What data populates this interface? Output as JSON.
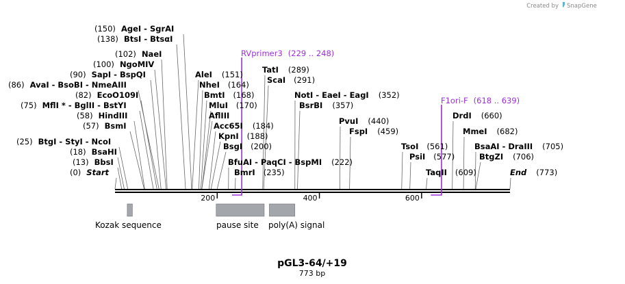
{
  "credit": {
    "text": "Created by",
    "brand": "SnapGene"
  },
  "map": {
    "name": "pGL3-64/+19",
    "length_label": "773 bp",
    "length": 773
  },
  "ticks": [
    {
      "pos": 200,
      "label": "200"
    },
    {
      "pos": 400,
      "label": "400"
    },
    {
      "pos": 600,
      "label": "600"
    }
  ],
  "sites": [
    {
      "id": "sgrai",
      "pos": 150,
      "pos_label": "(150)",
      "names": [
        "AgeI",
        "SgrAI"
      ]
    },
    {
      "id": "btsci",
      "pos": 138,
      "pos_label": "(138)",
      "names": [
        "BtsI",
        "BtsαI"
      ]
    },
    {
      "id": "naei",
      "pos": 102,
      "pos_label": "(102)",
      "names": [
        "NaeI"
      ]
    },
    {
      "id": "ngomiv",
      "pos": 100,
      "pos_label": "(100)",
      "names": [
        "NgoMIV"
      ]
    },
    {
      "id": "sapi",
      "pos": 90,
      "pos_label": "(90)",
      "names": [
        "SapI",
        "BspQI"
      ]
    },
    {
      "id": "avai",
      "pos": 86,
      "pos_label": "(86)",
      "names": [
        "AvaI",
        "BsoBI",
        "NmeAIII"
      ]
    },
    {
      "id": "ecoo109i",
      "pos": 82,
      "pos_label": "(82)",
      "names": [
        "EcoO109I"
      ]
    },
    {
      "id": "mfli",
      "pos": 75,
      "pos_label": "(75)",
      "names": [
        "MflI *",
        "BglII",
        "BstYI"
      ]
    },
    {
      "id": "hindiii",
      "pos": 58,
      "pos_label": "(58)",
      "names": [
        "HindIII"
      ]
    },
    {
      "id": "bsmi",
      "pos": 57,
      "pos_label": "(57)",
      "names": [
        "BsmI"
      ]
    },
    {
      "id": "btgi",
      "pos": 25,
      "pos_label": "(25)",
      "names": [
        "BtgI",
        "StyI",
        "NcoI"
      ]
    },
    {
      "id": "bsahi",
      "pos": 18,
      "pos_label": "(18)",
      "names": [
        "BsaHI"
      ]
    },
    {
      "id": "bbsi",
      "pos": 13,
      "pos_label": "(13)",
      "names": [
        "BbsI"
      ]
    },
    {
      "id": "start",
      "pos": 0,
      "pos_label": "(0)",
      "names": [
        "Start"
      ],
      "italic": true
    },
    {
      "id": "alei",
      "pos": 151,
      "pos_label": "(151)",
      "names": [
        "AleI"
      ]
    },
    {
      "id": "nhei",
      "pos": 164,
      "pos_label": "(164)",
      "names": [
        "NheI"
      ]
    },
    {
      "id": "bmti",
      "pos": 168,
      "pos_label": "(168)",
      "names": [
        "BmtI"
      ]
    },
    {
      "id": "mlui",
      "pos": 170,
      "pos_label": "(170)",
      "names": [
        "MluI"
      ]
    },
    {
      "id": "afliii",
      "pos": 170,
      "pos_label": "",
      "names": [
        "AflIII"
      ]
    },
    {
      "id": "acc65i",
      "pos": 184,
      "pos_label": "(184)",
      "names": [
        "Acc65I"
      ]
    },
    {
      "id": "kpni",
      "pos": 188,
      "pos_label": "(188)",
      "names": [
        "KpnI"
      ]
    },
    {
      "id": "bsgi",
      "pos": 200,
      "pos_label": "(200)",
      "names": [
        "BsgI"
      ]
    },
    {
      "id": "tati",
      "pos": 289,
      "pos_label": "(289)",
      "names": [
        "TatI"
      ]
    },
    {
      "id": "scai",
      "pos": 291,
      "pos_label": "(291)",
      "names": [
        "ScaI"
      ]
    },
    {
      "id": "bfuai",
      "pos": 222,
      "pos_label": "(222)",
      "names": [
        "BfuAI",
        "PaqCI",
        "BspMI"
      ]
    },
    {
      "id": "bmri",
      "pos": 235,
      "pos_label": "(235)",
      "names": [
        "BmrI"
      ]
    },
    {
      "id": "noti",
      "pos": 352,
      "pos_label": "(352)",
      "names": [
        "NotI",
        "EaeI",
        "EagI"
      ]
    },
    {
      "id": "bsrbi",
      "pos": 357,
      "pos_label": "(357)",
      "names": [
        "BsrBI"
      ]
    },
    {
      "id": "pvui",
      "pos": 440,
      "pos_label": "(440)",
      "names": [
        "PvuI"
      ]
    },
    {
      "id": "fspi",
      "pos": 459,
      "pos_label": "(459)",
      "names": [
        "FspI"
      ]
    },
    {
      "id": "tsoi",
      "pos": 561,
      "pos_label": "(561)",
      "names": [
        "TsoI"
      ]
    },
    {
      "id": "psii",
      "pos": 577,
      "pos_label": "(577)",
      "names": [
        "PsiI"
      ]
    },
    {
      "id": "taqii",
      "pos": 609,
      "pos_label": "(609)",
      "names": [
        "TaqII"
      ]
    },
    {
      "id": "drdi",
      "pos": 660,
      "pos_label": "(660)",
      "names": [
        "DrdI"
      ]
    },
    {
      "id": "mmei",
      "pos": 682,
      "pos_label": "(682)",
      "names": [
        "MmeI"
      ]
    },
    {
      "id": "bsaai",
      "pos": 705,
      "pos_label": "(705)",
      "names": [
        "BsaAI",
        "DraIII"
      ]
    },
    {
      "id": "btgzi",
      "pos": 706,
      "pos_label": "(706)",
      "names": [
        "BtgZI"
      ]
    },
    {
      "id": "end",
      "pos": 773,
      "pos_label": "(773)",
      "names": [
        "End"
      ],
      "italic": true
    }
  ],
  "primers": [
    {
      "id": "rvprimer3",
      "name": "RVprimer3",
      "range": "(229 .. 248)",
      "start": 229,
      "end": 248,
      "strand": "reverse"
    },
    {
      "id": "f1ori-f",
      "name": "F1ori-F",
      "range": "(618 .. 639)",
      "start": 618,
      "end": 639,
      "strand": "reverse"
    }
  ],
  "features": [
    {
      "id": "kozak",
      "name": "Kozak sequence",
      "start": 24,
      "end": 34,
      "color": "#a3a6ab"
    },
    {
      "id": "pause",
      "name": "pause site",
      "start": 198,
      "end": 292,
      "color": "#a3a6ab"
    },
    {
      "id": "polya",
      "name": "poly(A) signal",
      "start": 302,
      "end": 352,
      "color": "#a3a6ab"
    }
  ],
  "colors": {
    "primer": "#9b30d9",
    "feature": "#a3a6ab",
    "backbone": "#000000",
    "leader": "#666666"
  }
}
